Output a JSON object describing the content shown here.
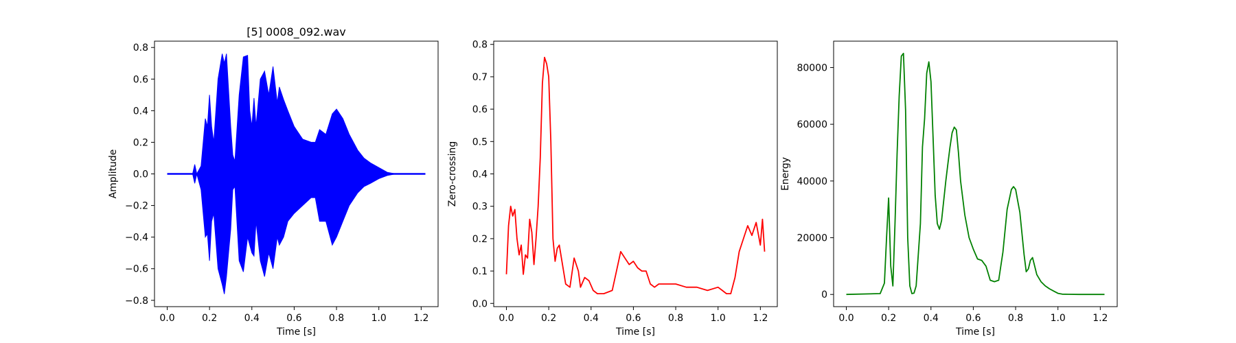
{
  "chart_data": [
    {
      "type": "line",
      "title": "[5] 0008_092.wav",
      "xlabel": "Time [s]",
      "ylabel": "Amplitude",
      "xlim": [
        -0.06,
        1.28
      ],
      "ylim": [
        -0.84,
        0.84
      ],
      "xticks": [
        "0.0",
        "0.2",
        "0.4",
        "0.6",
        "0.8",
        "1.0",
        "1.2"
      ],
      "yticks": [
        "−0.8",
        "−0.6",
        "−0.4",
        "−0.2",
        "0.0",
        "0.2",
        "0.4",
        "0.6",
        "0.8"
      ],
      "color": "#0000ff",
      "grid": false,
      "series": [
        {
          "envelope_x": [
            0.0,
            0.12,
            0.13,
            0.14,
            0.16,
            0.18,
            0.19,
            0.2,
            0.21,
            0.22,
            0.24,
            0.26,
            0.27,
            0.28,
            0.3,
            0.31,
            0.32,
            0.34,
            0.36,
            0.38,
            0.39,
            0.4,
            0.41,
            0.42,
            0.44,
            0.46,
            0.48,
            0.5,
            0.52,
            0.53,
            0.55,
            0.57,
            0.6,
            0.64,
            0.68,
            0.7,
            0.72,
            0.75,
            0.78,
            0.8,
            0.83,
            0.86,
            0.9,
            0.93,
            0.96,
            1.0,
            1.04,
            1.08,
            1.22
          ],
          "envelope_max": [
            0.0,
            0.0,
            0.06,
            0.0,
            0.05,
            0.35,
            0.3,
            0.5,
            0.3,
            0.2,
            0.6,
            0.76,
            0.7,
            0.76,
            0.3,
            0.12,
            0.08,
            0.5,
            0.74,
            0.75,
            0.4,
            0.3,
            0.48,
            0.3,
            0.6,
            0.65,
            0.5,
            0.68,
            0.45,
            0.55,
            0.47,
            0.4,
            0.3,
            0.22,
            0.2,
            0.2,
            0.28,
            0.25,
            0.38,
            0.41,
            0.35,
            0.25,
            0.15,
            0.1,
            0.07,
            0.04,
            0.01,
            0.0,
            0.0
          ],
          "envelope_min": [
            0.0,
            0.0,
            -0.06,
            0.0,
            -0.1,
            -0.4,
            -0.38,
            -0.55,
            -0.3,
            -0.25,
            -0.6,
            -0.7,
            -0.76,
            -0.65,
            -0.35,
            -0.1,
            -0.08,
            -0.55,
            -0.62,
            -0.4,
            -0.45,
            -0.5,
            -0.52,
            -0.3,
            -0.55,
            -0.65,
            -0.5,
            -0.6,
            -0.4,
            -0.45,
            -0.4,
            -0.3,
            -0.25,
            -0.2,
            -0.15,
            -0.15,
            -0.3,
            -0.3,
            -0.45,
            -0.4,
            -0.3,
            -0.2,
            -0.12,
            -0.08,
            -0.06,
            -0.03,
            -0.01,
            0.0,
            0.0
          ]
        }
      ]
    },
    {
      "type": "line",
      "title": "",
      "xlabel": "Time [s]",
      "ylabel": "Zero-crossing",
      "xlim": [
        -0.06,
        1.28
      ],
      "ylim": [
        -0.01,
        0.81
      ],
      "xticks": [
        "0.0",
        "0.2",
        "0.4",
        "0.6",
        "0.8",
        "1.0",
        "1.2"
      ],
      "yticks": [
        "0.0",
        "0.1",
        "0.2",
        "0.3",
        "0.4",
        "0.5",
        "0.6",
        "0.7",
        "0.8"
      ],
      "color": "#ff0000",
      "grid": false,
      "series": [
        {
          "x": [
            0.0,
            0.01,
            0.02,
            0.03,
            0.04,
            0.05,
            0.06,
            0.07,
            0.08,
            0.09,
            0.1,
            0.11,
            0.12,
            0.13,
            0.14,
            0.15,
            0.16,
            0.17,
            0.18,
            0.19,
            0.2,
            0.21,
            0.22,
            0.23,
            0.24,
            0.25,
            0.26,
            0.27,
            0.28,
            0.3,
            0.32,
            0.34,
            0.35,
            0.37,
            0.39,
            0.41,
            0.43,
            0.46,
            0.5,
            0.52,
            0.54,
            0.56,
            0.58,
            0.6,
            0.62,
            0.64,
            0.66,
            0.68,
            0.7,
            0.72,
            0.75,
            0.8,
            0.85,
            0.9,
            0.95,
            1.0,
            1.02,
            1.04,
            1.06,
            1.08,
            1.1,
            1.12,
            1.14,
            1.16,
            1.18,
            1.2,
            1.21,
            1.22
          ],
          "y": [
            0.09,
            0.24,
            0.3,
            0.27,
            0.29,
            0.2,
            0.15,
            0.18,
            0.09,
            0.15,
            0.14,
            0.26,
            0.22,
            0.12,
            0.2,
            0.3,
            0.45,
            0.68,
            0.76,
            0.74,
            0.7,
            0.5,
            0.2,
            0.13,
            0.17,
            0.18,
            0.14,
            0.1,
            0.06,
            0.05,
            0.14,
            0.1,
            0.05,
            0.08,
            0.07,
            0.04,
            0.03,
            0.03,
            0.04,
            0.1,
            0.16,
            0.14,
            0.12,
            0.13,
            0.11,
            0.1,
            0.1,
            0.06,
            0.05,
            0.06,
            0.06,
            0.06,
            0.05,
            0.05,
            0.04,
            0.05,
            0.04,
            0.03,
            0.03,
            0.08,
            0.16,
            0.2,
            0.24,
            0.21,
            0.25,
            0.18,
            0.26,
            0.16
          ]
        }
      ]
    },
    {
      "type": "line",
      "title": "",
      "xlabel": "Time [s]",
      "ylabel": "Energy",
      "xlim": [
        -0.06,
        1.28
      ],
      "ylim": [
        -4300,
        89300
      ],
      "xticks": [
        "0.0",
        "0.2",
        "0.4",
        "0.6",
        "0.8",
        "1.0",
        "1.2"
      ],
      "yticks": [
        "0",
        "20000",
        "40000",
        "60000",
        "80000"
      ],
      "color": "#008000",
      "grid": false,
      "series": [
        {
          "x": [
            0.0,
            0.16,
            0.18,
            0.19,
            0.2,
            0.21,
            0.22,
            0.23,
            0.24,
            0.25,
            0.26,
            0.27,
            0.28,
            0.29,
            0.3,
            0.31,
            0.32,
            0.33,
            0.35,
            0.36,
            0.37,
            0.38,
            0.39,
            0.4,
            0.41,
            0.42,
            0.43,
            0.44,
            0.45,
            0.46,
            0.47,
            0.48,
            0.49,
            0.5,
            0.51,
            0.52,
            0.53,
            0.54,
            0.56,
            0.58,
            0.6,
            0.62,
            0.64,
            0.66,
            0.68,
            0.7,
            0.72,
            0.74,
            0.76,
            0.78,
            0.79,
            0.8,
            0.81,
            0.82,
            0.84,
            0.85,
            0.86,
            0.87,
            0.88,
            0.89,
            0.9,
            0.92,
            0.94,
            0.96,
            0.98,
            1.0,
            1.02,
            1.05,
            1.1,
            1.22
          ],
          "y": [
            0,
            300,
            4000,
            20000,
            34000,
            10000,
            3000,
            25000,
            50000,
            70000,
            84000,
            85000,
            65000,
            20000,
            3000,
            300,
            500,
            3000,
            25000,
            52000,
            62000,
            78000,
            82000,
            75000,
            55000,
            35000,
            25000,
            23000,
            26000,
            33000,
            40000,
            46000,
            52000,
            57000,
            59000,
            58000,
            50000,
            40000,
            28000,
            20000,
            16000,
            12500,
            12000,
            10000,
            5000,
            4500,
            5000,
            15000,
            30000,
            37000,
            38000,
            37000,
            33000,
            29000,
            14000,
            8000,
            9000,
            12000,
            13000,
            10000,
            7000,
            4500,
            3000,
            2000,
            1200,
            400,
            100,
            50,
            0,
            0
          ]
        }
      ]
    }
  ]
}
